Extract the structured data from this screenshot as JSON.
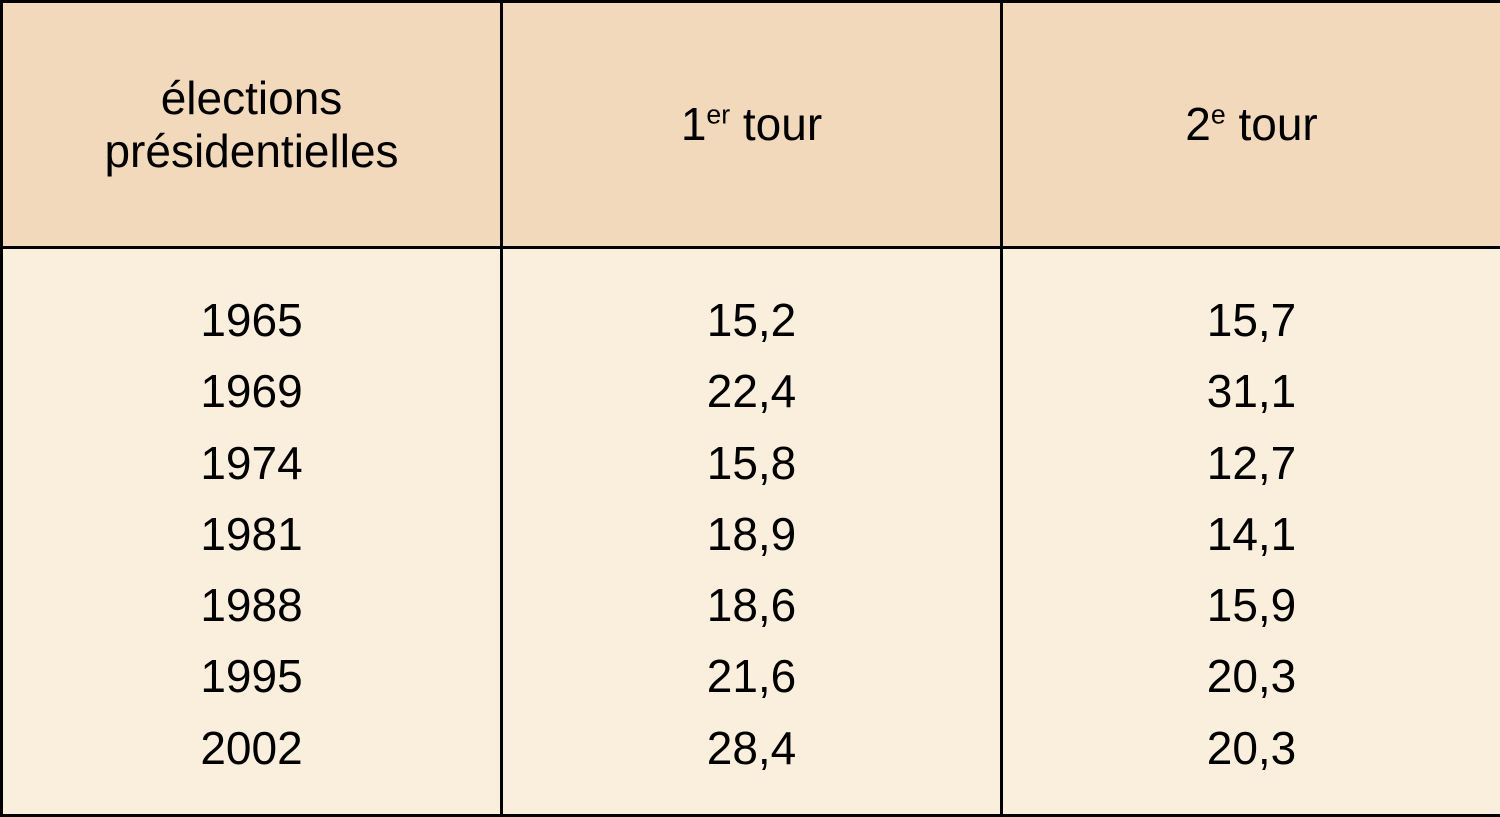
{
  "table": {
    "header_bg": "#f2d9bb",
    "body_bg": "#faeedd",
    "border_color": "#000000",
    "font_size_pt": 34,
    "columns": [
      {
        "key": "year",
        "label_html": "élections<br>présidentielles"
      },
      {
        "key": "round1",
        "label_html": "1<sup>er</sup> tour"
      },
      {
        "key": "round2",
        "label_html": "2<sup>e</sup> tour"
      }
    ],
    "rows": [
      {
        "year": "1965",
        "round1": "15,2",
        "round2": "15,7"
      },
      {
        "year": "1969",
        "round1": "22,4",
        "round2": "31,1"
      },
      {
        "year": "1974",
        "round1": "15,8",
        "round2": "12,7"
      },
      {
        "year": "1981",
        "round1": "18,9",
        "round2": "14,1"
      },
      {
        "year": "1988",
        "round1": "18,6",
        "round2": "15,9"
      },
      {
        "year": "1995",
        "round1": "21,6",
        "round2": "20,3"
      },
      {
        "year": "2002",
        "round1": "28,4",
        "round2": "20,3"
      }
    ]
  }
}
